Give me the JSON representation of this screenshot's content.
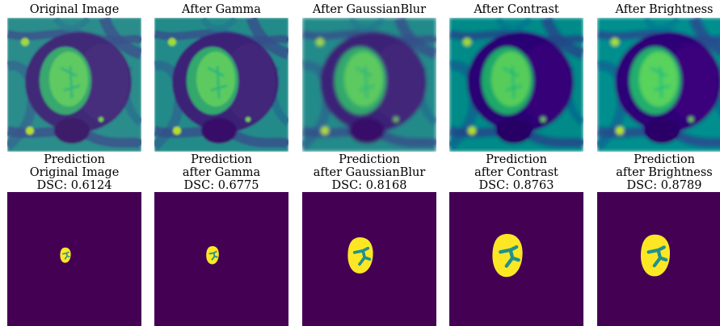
{
  "panels": [
    {
      "top_title": "Original Image",
      "pred_line1": "Prediction",
      "pred_line2": "Original Image",
      "dsc": "DSC: 0.6124",
      "tumor_scale": 0.22,
      "blur": 0,
      "contrast": 1.0,
      "brightness": 1.0
    },
    {
      "top_title": "After Gamma",
      "pred_line1": "Prediction",
      "pred_line2": "after Gamma",
      "dsc": "DSC: 0.6775",
      "tumor_scale": 0.26,
      "blur": 0,
      "contrast": 1.02,
      "brightness": 1.0
    },
    {
      "top_title": "After GaussianBlur",
      "pred_line1": "Prediction",
      "pred_line2": "after GaussianBlur",
      "dsc": "DSC: 0.8168",
      "tumor_scale": 0.52,
      "blur": 1.1,
      "contrast": 1.02,
      "brightness": 1.0
    },
    {
      "top_title": "After Contrast",
      "pred_line1": "Prediction",
      "pred_line2": "after Contrast",
      "dsc": "DSC: 0.8763",
      "tumor_scale": 0.62,
      "blur": 1.0,
      "contrast": 1.1,
      "brightness": 1.0
    },
    {
      "top_title": "After Brightness",
      "pred_line1": "Prediction",
      "pred_line2": "after Brightness",
      "dsc": "DSC: 0.8789",
      "tumor_scale": 0.6,
      "blur": 1.0,
      "contrast": 1.1,
      "brightness": 1.06
    }
  ],
  "colors": {
    "background": "#440154",
    "mri_dark": "#3b0f70",
    "mri_mid": "#2a788e",
    "mri_bright": "#7ad151",
    "pred_yellow": "#fde725",
    "pred_teal": "#21918c"
  }
}
